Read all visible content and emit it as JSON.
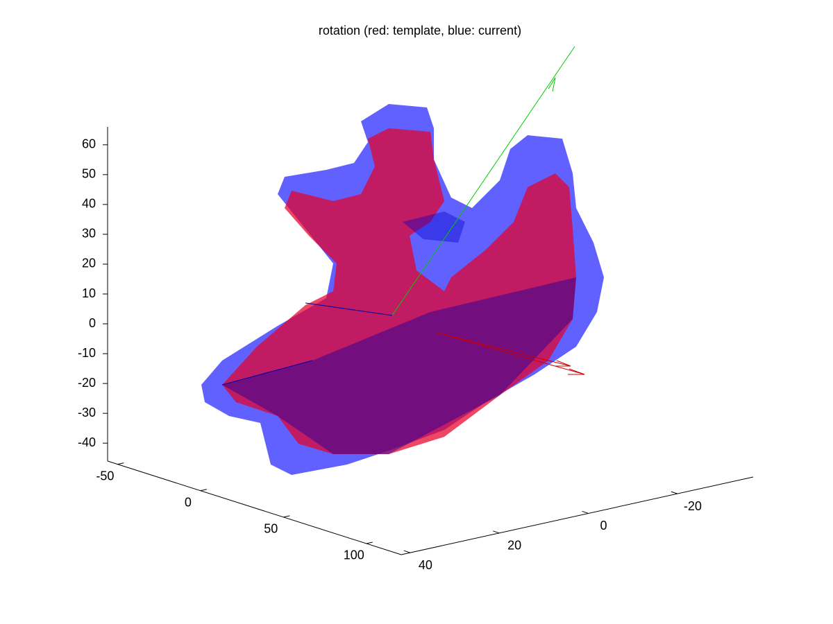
{
  "chart_data": {
    "type": "surface3d",
    "title": "rotation (red: template, blue: current)",
    "xlim": [
      -56,
      121
    ],
    "xticks": [
      -50,
      0,
      50,
      100
    ],
    "ylim": [
      42,
      -37
    ],
    "yticks": [
      40,
      20,
      0,
      -20
    ],
    "zlim": [
      -46,
      66
    ],
    "zticks": [
      60,
      50,
      40,
      30,
      20,
      10,
      0,
      -10,
      -20,
      -30,
      -40
    ],
    "series": [
      {
        "name": "template",
        "color": "#ff0000"
      },
      {
        "name": "current",
        "color": "#0000ff"
      }
    ]
  }
}
